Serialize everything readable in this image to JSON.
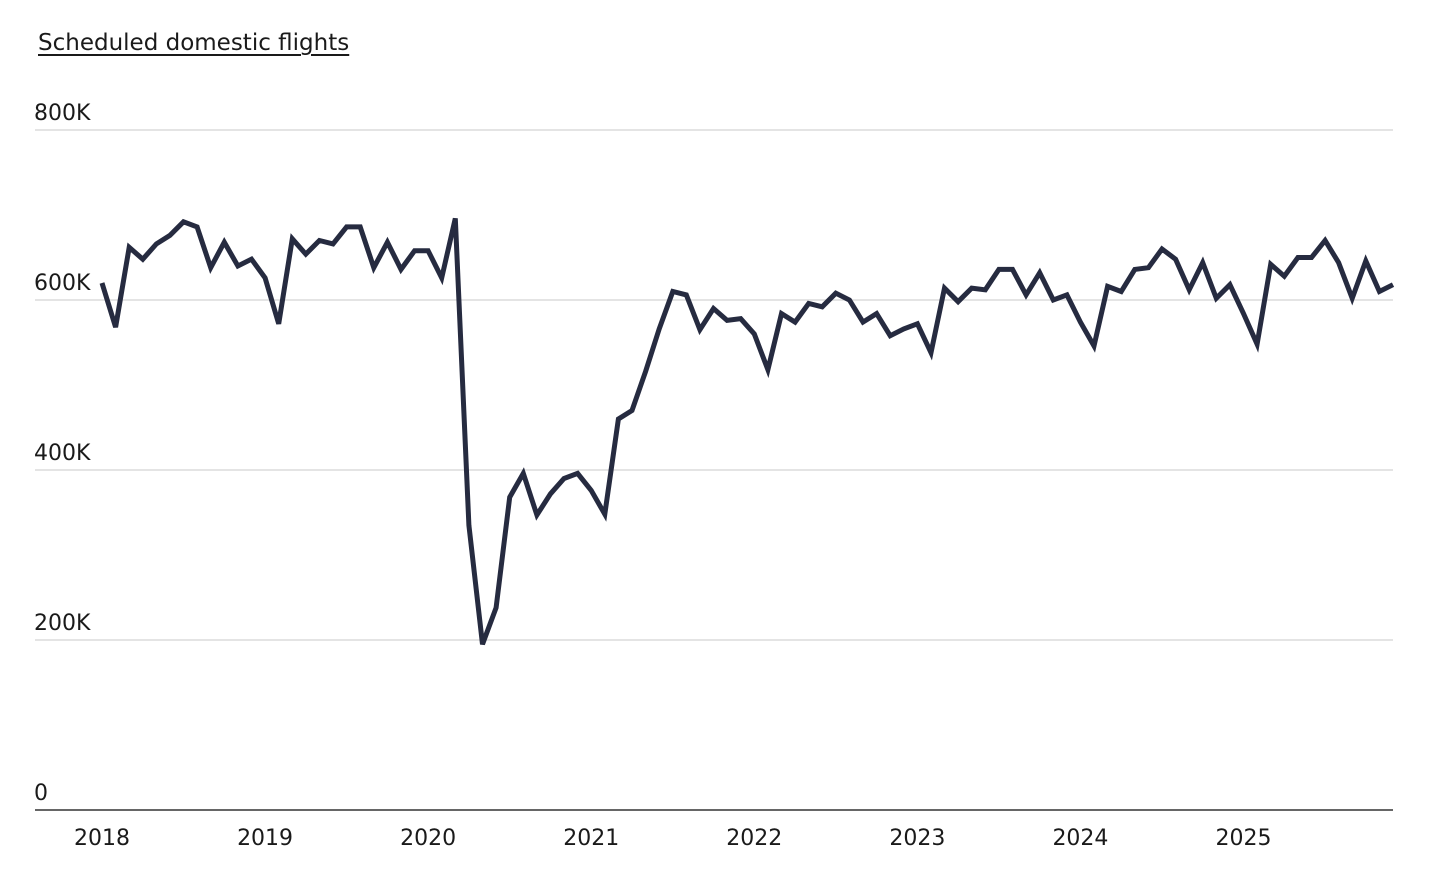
{
  "chart_data": {
    "type": "line",
    "ylabel": "Scheduled domestic flights",
    "ylim": [
      0,
      800000
    ],
    "yticks": [
      0,
      200000,
      400000,
      600000,
      800000
    ],
    "ytick_labels": [
      "0",
      "200K",
      "400K",
      "600K",
      "800K"
    ],
    "xlim": [
      "2018-01",
      "2025-12"
    ],
    "xticks": [
      "2018-01",
      "2019-01",
      "2020-01",
      "2021-01",
      "2022-01",
      "2023-01",
      "2024-01",
      "2025-01"
    ],
    "xtick_labels": [
      "2018",
      "2019",
      "2020",
      "2021",
      "2022",
      "2023",
      "2024",
      "2025"
    ],
    "grid": "horizontal",
    "line_color": "#262b40",
    "series": [
      {
        "x": [
          "2018-01",
          "2018-02",
          "2018-03",
          "2018-04",
          "2018-05",
          "2018-06",
          "2018-07",
          "2018-08",
          "2018-09",
          "2018-10",
          "2018-11",
          "2018-12",
          "2019-01",
          "2019-02",
          "2019-03",
          "2019-04",
          "2019-05",
          "2019-06",
          "2019-07",
          "2019-08",
          "2019-09",
          "2019-10",
          "2019-11",
          "2019-12",
          "2020-01",
          "2020-02",
          "2020-03",
          "2020-04",
          "2020-05",
          "2020-06",
          "2020-07",
          "2020-08",
          "2020-09",
          "2020-10",
          "2020-11",
          "2020-12",
          "2021-01",
          "2021-02",
          "2021-03",
          "2021-04",
          "2021-05",
          "2021-06",
          "2021-07",
          "2021-08",
          "2021-09",
          "2021-10",
          "2021-11",
          "2021-12",
          "2022-01",
          "2022-02",
          "2022-03",
          "2022-04",
          "2022-05",
          "2022-06",
          "2022-07",
          "2022-08",
          "2022-09",
          "2022-10",
          "2022-11",
          "2022-12",
          "2023-01",
          "2023-02",
          "2023-03",
          "2023-04",
          "2023-05",
          "2023-06",
          "2023-07",
          "2023-08",
          "2023-09",
          "2023-10",
          "2023-11",
          "2023-12",
          "2024-01",
          "2024-02",
          "2024-03",
          "2024-04",
          "2024-05",
          "2024-06",
          "2024-07",
          "2024-08",
          "2024-09",
          "2024-10",
          "2024-11",
          "2024-12",
          "2025-01",
          "2025-02",
          "2025-03",
          "2025-04",
          "2025-05",
          "2025-06",
          "2025-07",
          "2025-08",
          "2025-09",
          "2025-10",
          "2025-11",
          "2025-12"
        ],
        "values": [
          620000,
          568000,
          662000,
          648000,
          666000,
          676000,
          692000,
          686000,
          638000,
          668000,
          640000,
          648000,
          626000,
          572000,
          672000,
          654000,
          670000,
          666000,
          686000,
          686000,
          638000,
          668000,
          636000,
          658000,
          658000,
          626000,
          696000,
          335000,
          195000,
          238000,
          368000,
          396000,
          347000,
          372000,
          390000,
          396000,
          376000,
          348000,
          460000,
          470000,
          516000,
          566000,
          610000,
          606000,
          565000,
          590000,
          576000,
          578000,
          560000,
          518000,
          584000,
          574000,
          596000,
          592000,
          608000,
          600000,
          574000,
          584000,
          558000,
          566000,
          572000,
          538000,
          614000,
          598000,
          614000,
          612000,
          636000,
          636000,
          606000,
          632000,
          600000,
          606000,
          574000,
          546000,
          616000,
          610000,
          636000,
          638000,
          660000,
          648000,
          612000,
          644000,
          602000,
          618000,
          584000,
          548000,
          642000,
          628000,
          650000,
          650000,
          670000,
          644000,
          602000,
          646000,
          610000,
          618000
        ]
      }
    ]
  }
}
